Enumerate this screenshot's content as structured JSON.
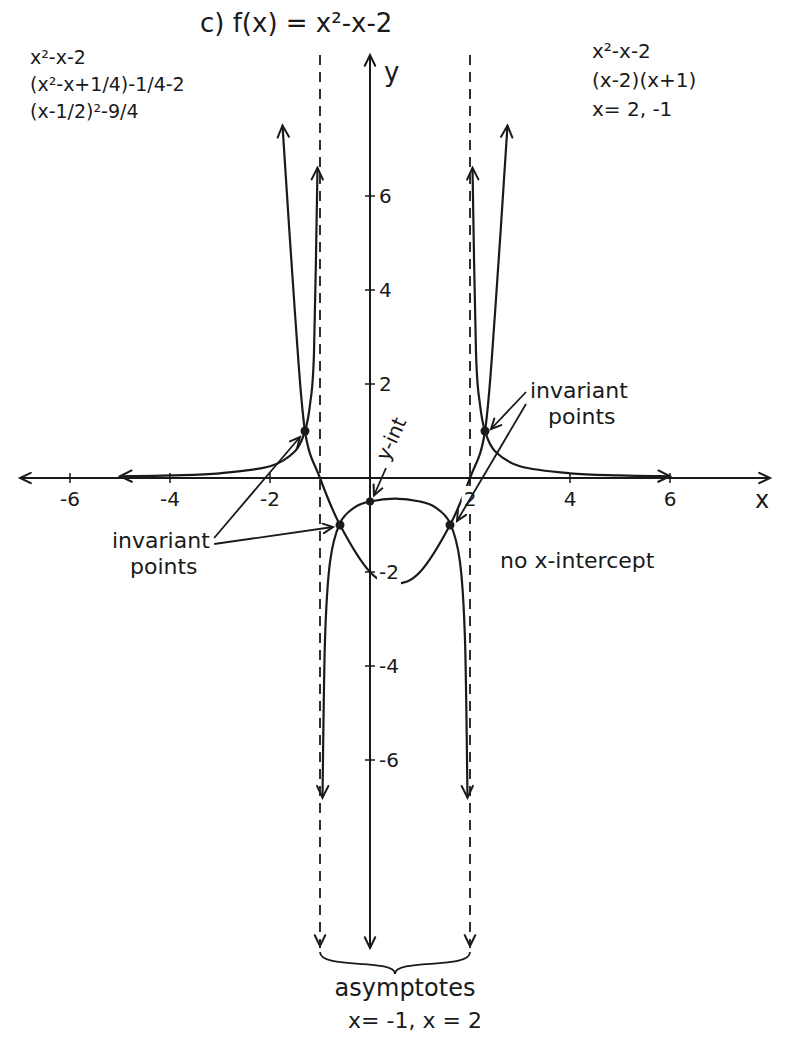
{
  "chart_data": {
    "type": "line",
    "title": "c) f(x) = x²-x-2",
    "x_label": "x",
    "y_label": "y",
    "xlim": [
      -7,
      8
    ],
    "ylim": [
      -10,
      9
    ],
    "xticks": [
      -6,
      -4,
      -2,
      2,
      4,
      6
    ],
    "yticks": [
      -6,
      -4,
      -2,
      2,
      4,
      6
    ],
    "grid": false,
    "series": [
      {
        "color": "#1a1a1a",
        "line_style": "solid",
        "marker": "arrow",
        "x": [
          -1.75,
          -1.5,
          -1.3,
          -1,
          -0.6,
          0,
          0.5,
          1,
          1.6,
          2,
          2.3,
          2.5,
          2.75
        ],
        "values": [
          7.5,
          3.5,
          1,
          0,
          -1,
          -2,
          -2.25,
          -2,
          -1,
          0,
          1,
          3.5,
          7.5
        ]
      },
      {
        "color": "#1a1a1a",
        "line_style": "solid",
        "marker": "arrow",
        "x": [
          -5,
          -4,
          -3,
          -2,
          -1.5,
          -1.3,
          -1.2,
          -1.12,
          -1.05,
          -1,
          -0.95,
          -0.9,
          -0.8,
          -0.6,
          -0.3,
          0,
          0.5,
          1,
          1.3,
          1.6,
          1.8,
          1.9,
          1.95,
          2,
          2.05,
          2.12,
          2.2,
          2.3,
          2.5,
          3,
          4,
          5,
          6
        ],
        "values": [
          0.036,
          0.056,
          0.1,
          0.25,
          0.57,
          1,
          1.56,
          2.67,
          6.6,
          null,
          -6.8,
          -3.45,
          -1.79,
          -0.96,
          -0.62,
          -0.5,
          -0.44,
          -0.5,
          -0.62,
          -0.96,
          -1.79,
          -3.45,
          -6.8,
          null,
          6.6,
          2.67,
          1.56,
          1,
          0.57,
          0.25,
          0.1,
          0.056,
          0.036
        ]
      }
    ],
    "asymptotes": {
      "x": [
        -1,
        2
      ],
      "line_style": "dashed",
      "label": "asymptotes",
      "equations": "x= -1, x = 2"
    },
    "invariant_points": {
      "x": [
        -1.3,
        -0.6,
        2.3,
        1.6
      ],
      "y": [
        1,
        -1,
        1,
        -1
      ],
      "labels": [
        "invariant points",
        "invariant points"
      ]
    },
    "y_intercept": {
      "x": 0,
      "y": -0.5,
      "label": "y-int"
    },
    "annotations": [
      "no x-intercept"
    ],
    "work_left": [
      "x²-x-2",
      "(x²-x+1/4)-1/4-2",
      "(x-1/2)²-9/4"
    ],
    "work_right": [
      "x²-x-2",
      "(x-2)(x+1)",
      "x= 2, -1"
    ]
  }
}
